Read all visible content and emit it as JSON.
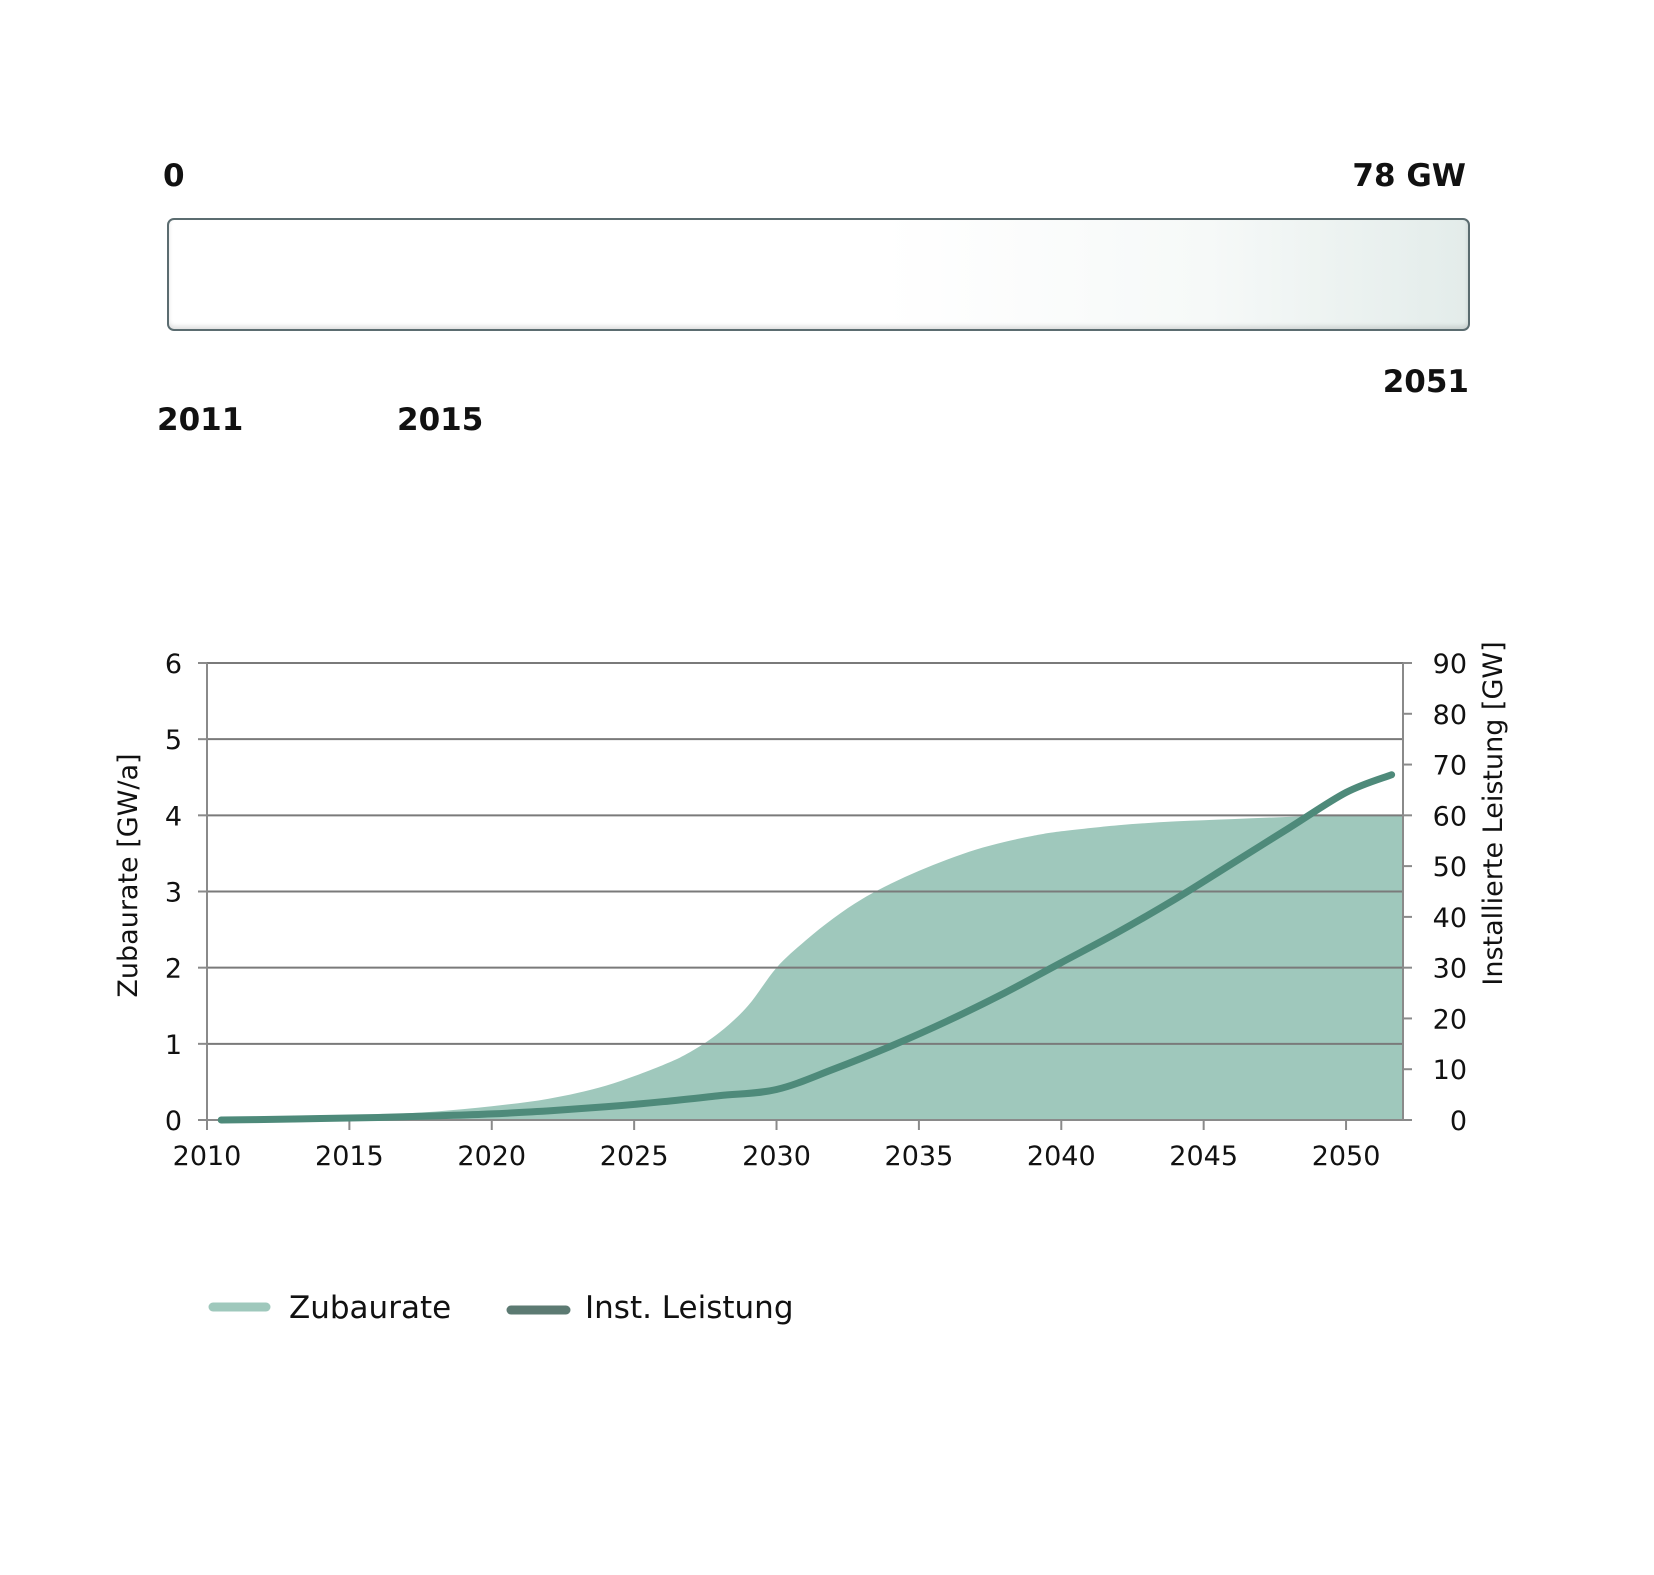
{
  "gauge": {
    "min_label": "0",
    "max_label": "78 GW",
    "end_year": "2051",
    "start_year": "2011",
    "current_year": "2015"
  },
  "colors": {
    "area": "#9fc8bc",
    "line": "#4e8a7a",
    "legend_line": "#5c7a72",
    "grid": "#7a7a7a",
    "axis": "#8a8a8a"
  },
  "chart_data": {
    "type": "area+line",
    "xlabel": "",
    "ylabel_left": "Zubaurate [GW/a]",
    "ylabel_right": "Installierte Leistung [GW]",
    "xlim": [
      2010,
      2052
    ],
    "ylim_left": [
      0,
      6
    ],
    "ylim_right": [
      0,
      90
    ],
    "x_ticks": [
      "2010",
      "2015",
      "2020",
      "2025",
      "2030",
      "2035",
      "2040",
      "2045",
      "2050"
    ],
    "y_left_ticks": [
      "0",
      "1",
      "2",
      "3",
      "4",
      "5",
      "6"
    ],
    "y_right_ticks": [
      "0",
      "10",
      "20",
      "30",
      "40",
      "50",
      "60",
      "70",
      "80",
      "90"
    ],
    "grid": "horizontal",
    "legend_position": "bottom-left",
    "series": [
      {
        "name": "Zubaurate",
        "type": "area",
        "axis": "left",
        "x": [
          2010,
          2012,
          2014,
          2016,
          2018,
          2020,
          2022,
          2024,
          2026,
          2027,
          2028,
          2029,
          2030,
          2031,
          2032,
          2033,
          2034,
          2035,
          2036,
          2037,
          2038,
          2039,
          2040,
          2042,
          2044,
          2046,
          2048,
          2050,
          2052
        ],
        "values": [
          0.0,
          0.02,
          0.04,
          0.07,
          0.11,
          0.18,
          0.28,
          0.45,
          0.72,
          0.9,
          1.15,
          1.5,
          2.0,
          2.35,
          2.65,
          2.9,
          3.1,
          3.27,
          3.42,
          3.55,
          3.65,
          3.73,
          3.79,
          3.87,
          3.92,
          3.95,
          3.98,
          4.0,
          4.0
        ]
      },
      {
        "name": "Inst. Leistung",
        "type": "line",
        "axis": "right",
        "x": [
          2010.5,
          2012,
          2014,
          2016,
          2018,
          2020,
          2022,
          2024,
          2026,
          2028,
          2030,
          2032,
          2034,
          2036,
          2038,
          2040,
          2042,
          2044,
          2046,
          2048,
          2050,
          2051.6
        ],
        "values": [
          0.0,
          0.1,
          0.3,
          0.5,
          0.8,
          1.2,
          1.8,
          2.6,
          3.6,
          4.8,
          6.0,
          10.0,
          14.5,
          19.5,
          25.0,
          31.0,
          37.0,
          43.5,
          50.5,
          57.5,
          64.5,
          68.0
        ]
      }
    ]
  },
  "legend": {
    "area_label": "Zubaurate",
    "line_label": "Inst. Leistung"
  }
}
